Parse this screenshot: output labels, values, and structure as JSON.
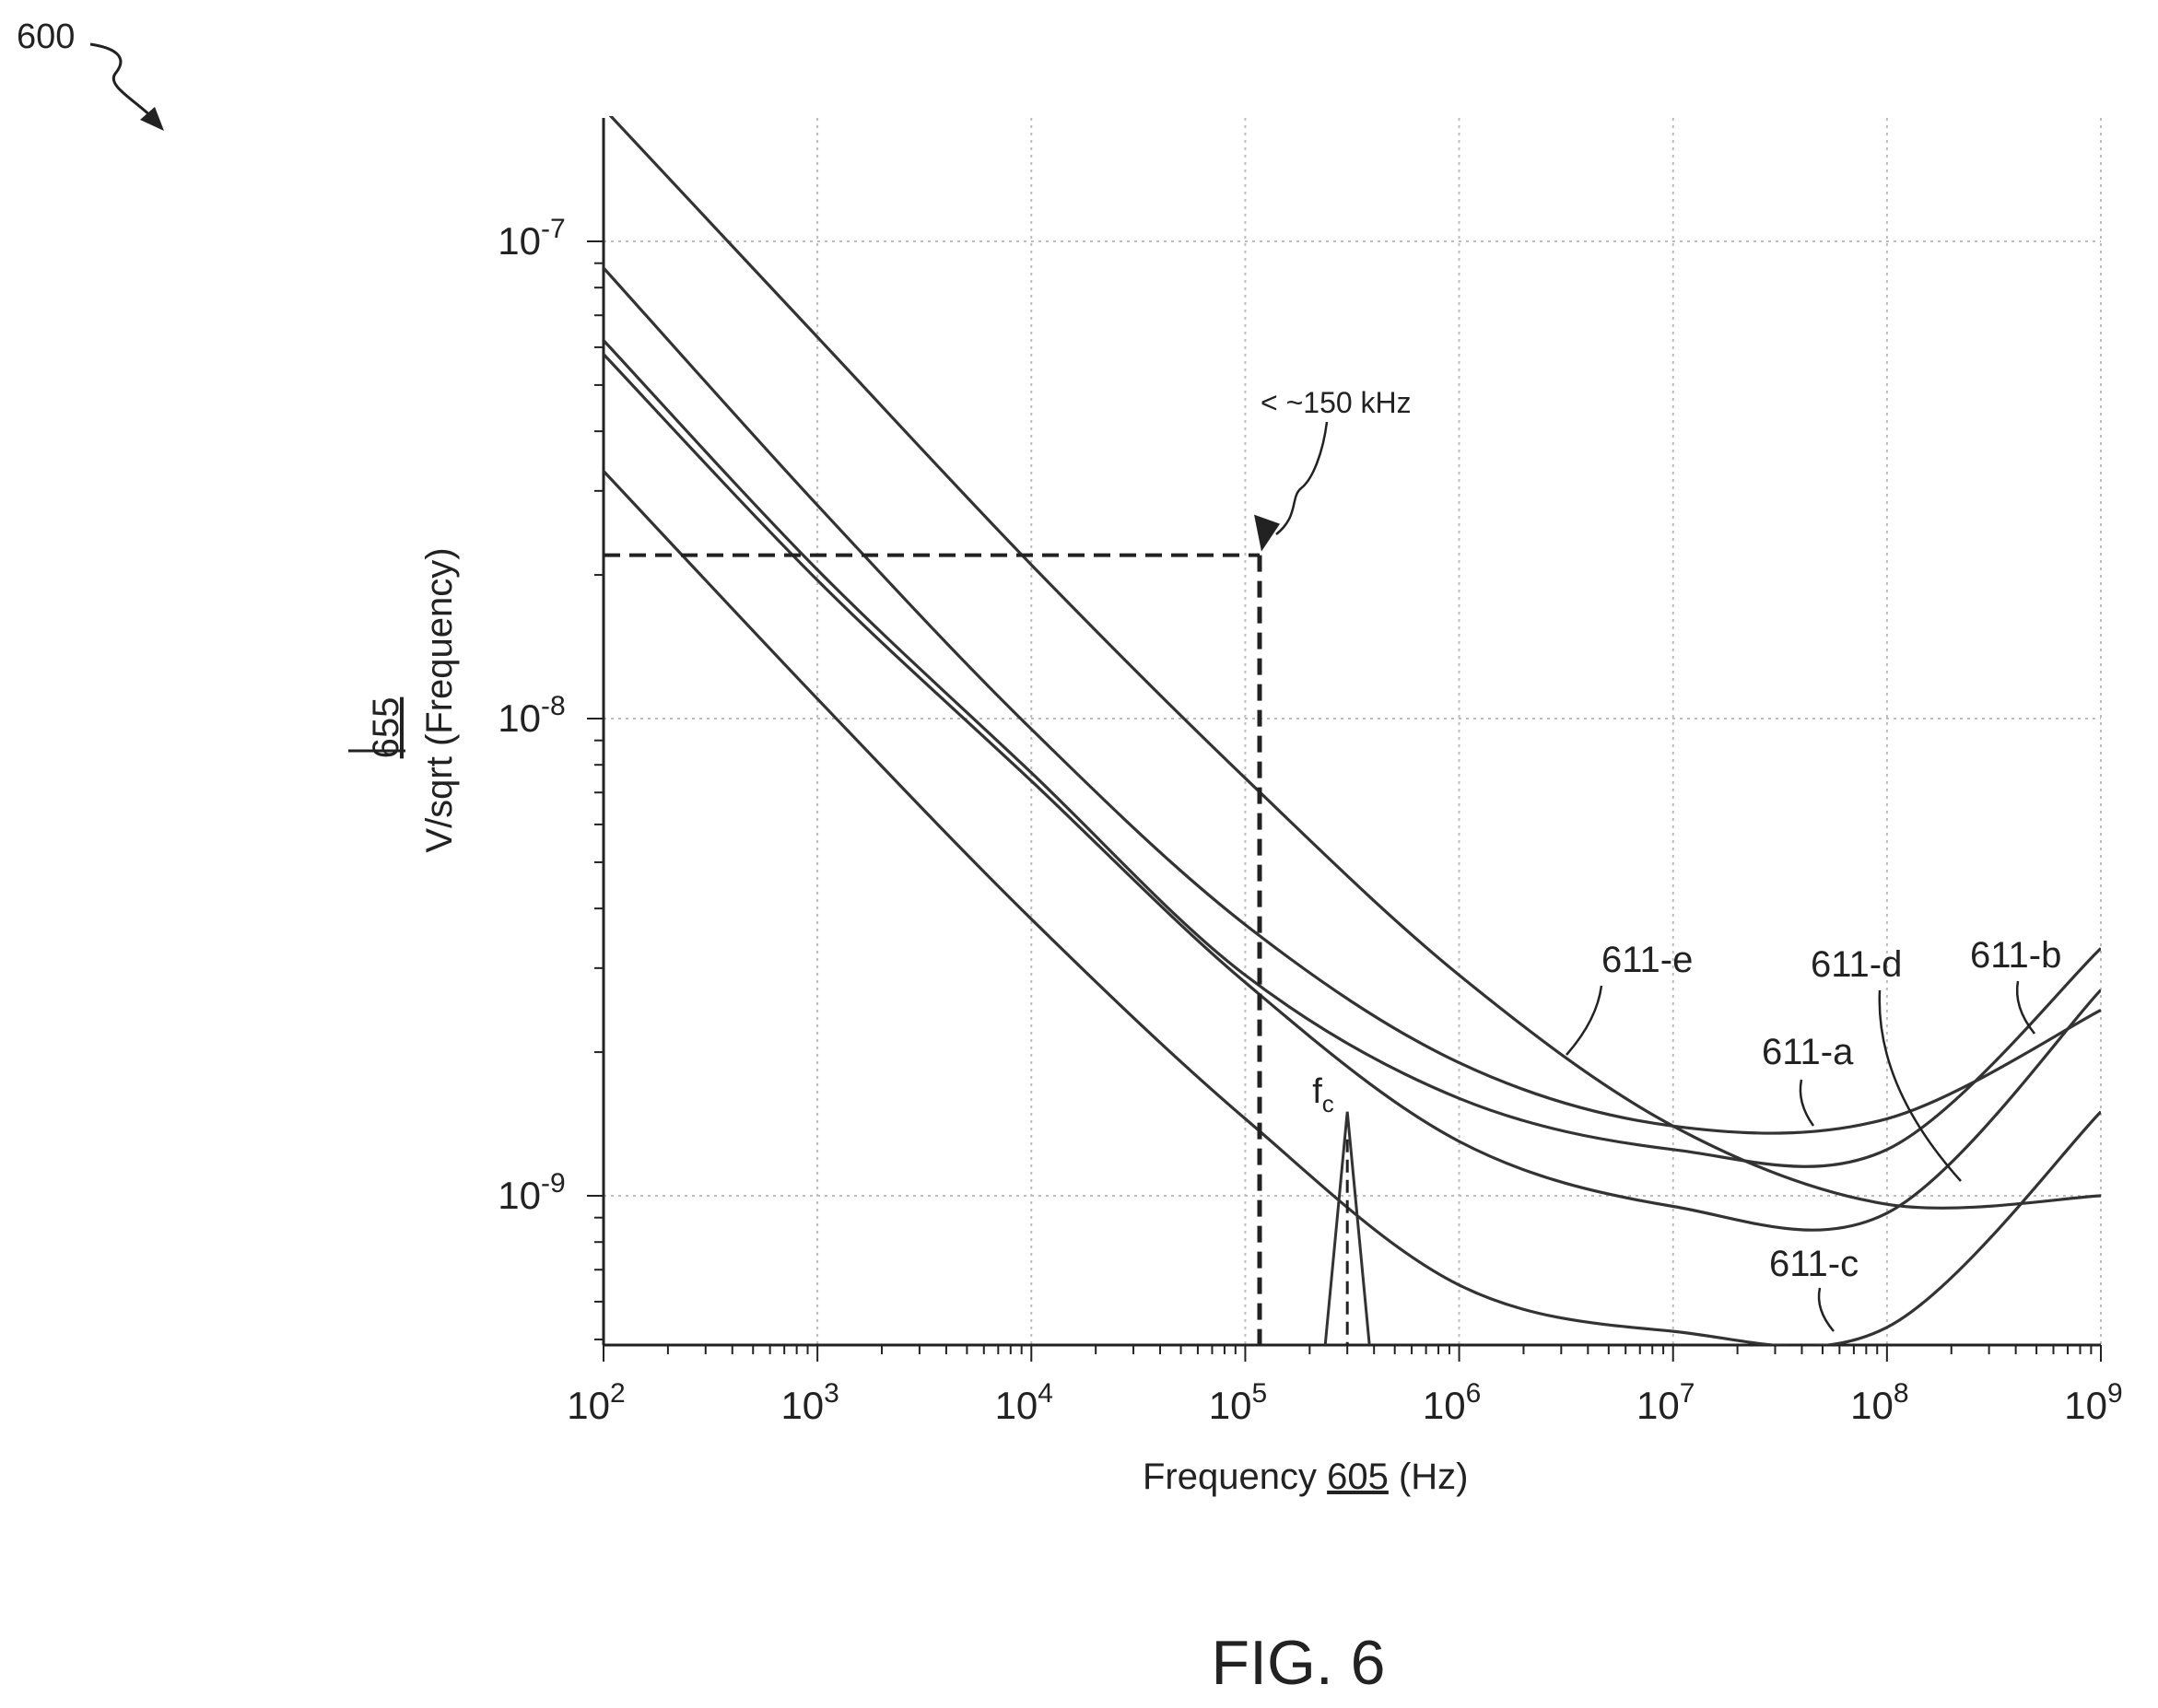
{
  "figure": {
    "ref_number": "600",
    "caption": "FIG. 6"
  },
  "chart_data": {
    "type": "line",
    "x_scale": "log",
    "y_scale": "log",
    "xlim": [
      100,
      1000000000
    ],
    "ylim": [
      5e-10,
      1.8e-07
    ],
    "grid": true,
    "xlabel": {
      "pre": "Frequency ",
      "ref": "605",
      "post": " (Hz)"
    },
    "ylabel": {
      "ref": "655",
      "text": "V/sqrt (Frequency)"
    },
    "x_ticks": [
      {
        "value": 100,
        "base": "10",
        "exp": "2"
      },
      {
        "value": 1000,
        "base": "10",
        "exp": "3"
      },
      {
        "value": 10000,
        "base": "10",
        "exp": "4"
      },
      {
        "value": 100000,
        "base": "10",
        "exp": "5"
      },
      {
        "value": 1000000,
        "base": "10",
        "exp": "6"
      },
      {
        "value": 10000000,
        "base": "10",
        "exp": "7"
      },
      {
        "value": 100000000,
        "base": "10",
        "exp": "8"
      },
      {
        "value": 1000000000,
        "base": "10",
        "exp": "9"
      }
    ],
    "y_ticks": [
      {
        "value": 1e-07,
        "base": "10",
        "exp": "-7"
      },
      {
        "value": 1e-08,
        "base": "10",
        "exp": "-8"
      },
      {
        "value": 1e-09,
        "base": "10",
        "exp": "-9"
      }
    ],
    "series": [
      {
        "name": "611-e",
        "x": [
          100,
          1000,
          10000,
          100000,
          1000000,
          10000000,
          100000000,
          1000000000
        ],
        "y": [
          1.9e-07,
          6.3e-08,
          2.1e-08,
          7.5e-09,
          2.9e-09,
          1.4e-09,
          9.6e-10,
          1e-09
        ]
      },
      {
        "name": "611-a",
        "x": [
          100,
          1000,
          10000,
          100000,
          1000000,
          10000000,
          100000000,
          1000000000
        ],
        "y": [
          8.8e-08,
          2.8e-08,
          9.5e-09,
          3.7e-09,
          1.9e-09,
          1.4e-09,
          1.45e-09,
          2.45e-09
        ]
      },
      {
        "name": "611-b",
        "x": [
          100,
          1000,
          10000,
          100000,
          1000000,
          10000000,
          100000000,
          1000000000
        ],
        "y": [
          6.2e-08,
          2.05e-08,
          7.7e-09,
          2.9e-09,
          1.6e-09,
          1.25e-09,
          1.25e-09,
          3.3e-09
        ]
      },
      {
        "name": "611-d",
        "x": [
          100,
          1000,
          10000,
          100000,
          1000000,
          10000000,
          100000000,
          1000000000
        ],
        "y": [
          5.8e-08,
          1.95e-08,
          7.4e-09,
          2.8e-09,
          1.3e-09,
          9.5e-10,
          9.2e-10,
          2.7e-09
        ]
      },
      {
        "name": "611-c",
        "x": [
          100,
          1000,
          10000,
          100000,
          1000000,
          10000000,
          100000000,
          1000000000
        ],
        "y": [
          3.3e-08,
          1.1e-08,
          3.8e-09,
          1.45e-09,
          6.5e-10,
          5.2e-10,
          5.3e-10,
          1.5e-09
        ]
      }
    ],
    "annotations": {
      "cutoff_label": "< ~150 kHz",
      "cutoff_x": 150000,
      "cutoff_y": 2.2e-08,
      "peak_label_main": "f",
      "peak_label_sub": "c",
      "peak_x": 300000,
      "peak_y": 1.5e-09
    }
  }
}
